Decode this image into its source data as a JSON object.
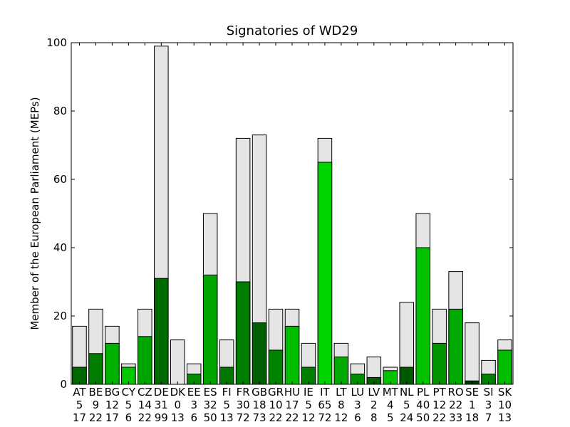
{
  "chart_data": {
    "type": "bar",
    "title": "Signatories of WD29",
    "ylabel": "Member of the European Parliament (MEPs)",
    "xlabel": "",
    "ylim": [
      0,
      100
    ],
    "yticks": [
      "0",
      "20",
      "40",
      "60",
      "80",
      "100"
    ],
    "categories": [
      "AT",
      "BE",
      "BG",
      "CY",
      "CZ",
      "DE",
      "DK",
      "EE",
      "ES",
      "FI",
      "FR",
      "GB",
      "GR",
      "HU",
      "IE",
      "IT",
      "LT",
      "LU",
      "LV",
      "MT",
      "NL",
      "PL",
      "PT",
      "RO",
      "SE",
      "SI",
      "SK"
    ],
    "signatories": [
      5,
      9,
      12,
      5,
      14,
      31,
      0,
      3,
      32,
      5,
      30,
      18,
      10,
      17,
      5,
      65,
      8,
      3,
      2,
      4,
      5,
      40,
      12,
      22,
      1,
      3,
      10
    ],
    "totals": [
      17,
      22,
      17,
      6,
      22,
      99,
      13,
      6,
      50,
      13,
      72,
      73,
      22,
      22,
      12,
      72,
      12,
      6,
      8,
      5,
      24,
      50,
      22,
      33,
      18,
      7,
      13
    ],
    "signatories_labels": [
      "5",
      "9",
      "12",
      "5",
      "14",
      "31",
      "0",
      "3",
      "32",
      "5",
      "30",
      "18",
      "10",
      "17",
      "5",
      "65",
      "8",
      "3",
      "2",
      "4",
      "5",
      "40",
      "12",
      "22",
      "1",
      "3",
      "10"
    ],
    "totals_labels": [
      "17",
      "22",
      "17",
      "6",
      "22",
      "99",
      "13",
      "6",
      "50",
      "13",
      "72",
      "73",
      "22",
      "22",
      "12",
      "72",
      "12",
      "6",
      "8",
      "5",
      "24",
      "50",
      "22",
      "33",
      "18",
      "7",
      "13"
    ],
    "colors": {
      "total_fill": "#e5e5e5",
      "signed_low": "#003300",
      "signed_high": "#00e600",
      "axis": "#000000"
    },
    "grid": false,
    "legend": "none"
  }
}
